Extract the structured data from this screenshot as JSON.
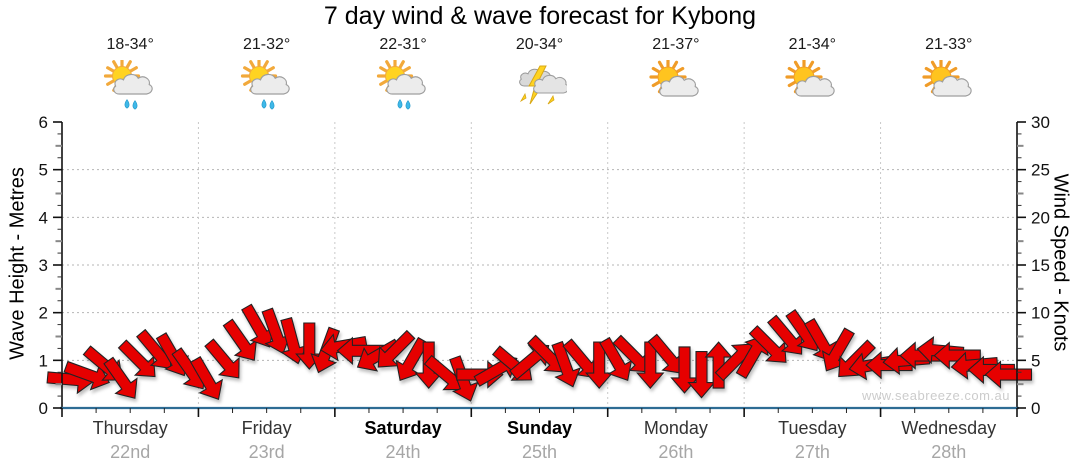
{
  "title": "7 day wind & wave forecast for Kybong",
  "watermark": "www.seabreeze.com.au",
  "axes": {
    "left_label": "Wave Height - Metres",
    "right_label": "Wind Speed - Knots",
    "left_ticks": [
      0,
      1,
      2,
      3,
      4,
      5,
      6
    ],
    "right_ticks": [
      0,
      5,
      10,
      15,
      20,
      25,
      30
    ]
  },
  "days": [
    {
      "name": "Thursday",
      "date": "22nd",
      "temp": "18-34°",
      "icon": "sun-cloud-rain",
      "weekend": false
    },
    {
      "name": "Friday",
      "date": "23rd",
      "temp": "21-32°",
      "icon": "sun-cloud-rain",
      "weekend": false
    },
    {
      "name": "Saturday",
      "date": "24th",
      "temp": "22-31°",
      "icon": "sun-cloud-rain",
      "weekend": true
    },
    {
      "name": "Sunday",
      "date": "25th",
      "temp": "20-34°",
      "icon": "cloud-lightning",
      "weekend": true
    },
    {
      "name": "Monday",
      "date": "26th",
      "temp": "21-37°",
      "icon": "sun-cloud",
      "weekend": false
    },
    {
      "name": "Tuesday",
      "date": "27th",
      "temp": "21-34°",
      "icon": "sun-cloud",
      "weekend": false
    },
    {
      "name": "Wednesday",
      "date": "28th",
      "temp": "21-33°",
      "icon": "sun-cloud",
      "weekend": false
    }
  ],
  "colors": {
    "arrow_fill": "#e60005",
    "arrow_stroke": "#222222",
    "x_axis_line": "#2e6c94",
    "grid": "#b5b5b5",
    "day_separator": "#c9c9c9"
  },
  "chart_data": {
    "type": "scatter",
    "subtype": "wind-direction-arrows",
    "title": "7 day wind & wave forecast for Kybong",
    "categories": [
      "Thursday 22nd",
      "Friday 23rd",
      "Saturday 24th",
      "Sunday 25th",
      "Monday 26th",
      "Tuesday 27th",
      "Wednesday 28th"
    ],
    "points_per_day": 8,
    "left_axis": {
      "label": "Wave Height - Metres",
      "range": [
        0,
        6
      ]
    },
    "right_axis": {
      "label": "Wind Speed - Knots",
      "range": [
        0,
        30
      ]
    },
    "grid": true,
    "series": [
      {
        "name": "Wind speed & direction",
        "unit_speed": "knots",
        "unit_direction": "degrees-screen (0=E, 90=S, 180=W, 270=N)",
        "points": [
          [
            3.0,
            5
          ],
          [
            3.5,
            20
          ],
          [
            4.5,
            40
          ],
          [
            3.0,
            55
          ],
          [
            5.0,
            45
          ],
          [
            6.0,
            50
          ],
          [
            5.5,
            60
          ],
          [
            4.0,
            55
          ],
          [
            3.0,
            60
          ],
          [
            5.0,
            50
          ],
          [
            7.0,
            55
          ],
          [
            8.5,
            60
          ],
          [
            8.0,
            70
          ],
          [
            7.0,
            75
          ],
          [
            6.5,
            90
          ],
          [
            6.0,
            110
          ],
          [
            6.5,
            170
          ],
          [
            6.0,
            180
          ],
          [
            5.5,
            150
          ],
          [
            6.0,
            135
          ],
          [
            5.0,
            120
          ],
          [
            4.5,
            90
          ],
          [
            3.5,
            40
          ],
          [
            3.0,
            70
          ],
          [
            3.5,
            0
          ],
          [
            4.0,
            330
          ],
          [
            4.5,
            40
          ],
          [
            5.0,
            320
          ],
          [
            5.5,
            45
          ],
          [
            4.5,
            70
          ],
          [
            5.0,
            50
          ],
          [
            4.5,
            90
          ],
          [
            5.0,
            60
          ],
          [
            5.5,
            45
          ],
          [
            4.5,
            90
          ],
          [
            5.5,
            50
          ],
          [
            4.0,
            90
          ],
          [
            3.5,
            90
          ],
          [
            4.5,
            270
          ],
          [
            5.0,
            315
          ],
          [
            5.5,
            300
          ],
          [
            6.5,
            45
          ],
          [
            7.5,
            50
          ],
          [
            8.0,
            55
          ],
          [
            7.0,
            60
          ],
          [
            6.0,
            120
          ],
          [
            5.0,
            135
          ],
          [
            4.5,
            170
          ],
          [
            4.5,
            180
          ],
          [
            5.0,
            175
          ],
          [
            5.5,
            180
          ],
          [
            6.0,
            185
          ],
          [
            5.5,
            180
          ],
          [
            4.5,
            175
          ],
          [
            4.0,
            180
          ],
          [
            3.5,
            180
          ]
        ]
      }
    ]
  }
}
